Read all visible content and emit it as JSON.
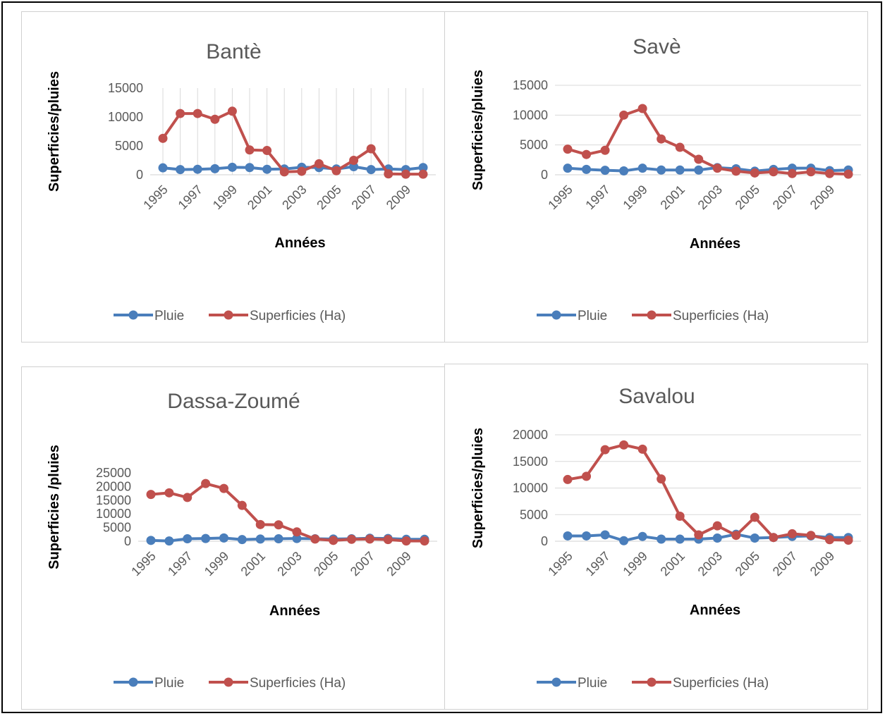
{
  "colors": {
    "pluie": "#4a7ebb",
    "superficies": "#c0504d",
    "grid": "#d9d9d9"
  },
  "chart_data": [
    {
      "type": "line",
      "title": "Bantè",
      "xlabel": "Années",
      "ylabel": "Superficies/pluies",
      "x": [
        1995,
        1996,
        1997,
        1998,
        1999,
        2000,
        2001,
        2002,
        2003,
        2004,
        2005,
        2006,
        2007,
        2008,
        2009,
        2010
      ],
      "x_tick_labels": [
        "1995",
        "1997",
        "1999",
        "2001",
        "2003",
        "2005",
        "2007",
        "2009"
      ],
      "ylim": [
        0,
        15000
      ],
      "yticks": [
        0,
        5000,
        10000,
        15000
      ],
      "y_tick_labels": [
        "0",
        "5000",
        "10000",
        "15000"
      ],
      "grid": "vertical",
      "legend": "bottom",
      "series": [
        {
          "name": "Pluie",
          "values": [
            1200,
            900,
            950,
            1050,
            1300,
            1250,
            950,
            1000,
            1300,
            1250,
            1000,
            1400,
            900,
            1000,
            900,
            1250
          ]
        },
        {
          "name": "Superficies (Ha)",
          "values": [
            6300,
            10600,
            10600,
            9600,
            11000,
            4300,
            4200,
            500,
            600,
            1900,
            700,
            2500,
            4500,
            150,
            100,
            100
          ]
        }
      ]
    },
    {
      "type": "line",
      "title": "Savè",
      "xlabel": "Années",
      "ylabel": "Superficies/pluies",
      "x": [
        1995,
        1996,
        1997,
        1998,
        1999,
        2000,
        2001,
        2002,
        2003,
        2004,
        2005,
        2006,
        2007,
        2008,
        2009,
        2010
      ],
      "x_tick_labels": [
        "1995",
        "1997",
        "1999",
        "2001",
        "2003",
        "2005",
        "2007",
        "2009"
      ],
      "ylim": [
        0,
        15000
      ],
      "yticks": [
        0,
        5000,
        10000,
        15000
      ],
      "y_tick_labels": [
        "0",
        "5000",
        "10000",
        "15000"
      ],
      "grid": "horizontal",
      "legend": "bottom",
      "series": [
        {
          "name": "Pluie",
          "values": [
            1100,
            900,
            750,
            650,
            1100,
            800,
            800,
            800,
            1200,
            1000,
            600,
            900,
            1100,
            1100,
            700,
            800
          ]
        },
        {
          "name": "Superficies (Ha)",
          "values": [
            4300,
            3400,
            4100,
            10000,
            11100,
            6000,
            4600,
            2600,
            1100,
            600,
            300,
            500,
            200,
            500,
            200,
            100
          ]
        }
      ]
    },
    {
      "type": "line",
      "title": "Dassa-Zoumé",
      "xlabel": "Années",
      "ylabel": "Superficies /pluies",
      "x": [
        1995,
        1996,
        1997,
        1998,
        1999,
        2000,
        2001,
        2002,
        2003,
        2004,
        2005,
        2006,
        2007,
        2008,
        2009,
        2010
      ],
      "x_tick_labels": [
        "1995",
        "1997",
        "1999",
        "2001",
        "2003",
        "2005",
        "2007",
        "2009"
      ],
      "ylim": [
        0,
        25000
      ],
      "yticks": [
        0,
        5000,
        10000,
        15000,
        20000,
        25000
      ],
      "y_tick_labels": [
        "0",
        "5000",
        "10000",
        "15000",
        "20000",
        "25000"
      ],
      "grid": "none",
      "legend": "bottom",
      "series": [
        {
          "name": "Pluie",
          "values": [
            300,
            100,
            900,
            1000,
            1200,
            600,
            800,
            900,
            1000,
            900,
            800,
            900,
            1100,
            1000,
            700,
            700
          ]
        },
        {
          "name": "Superficies (Ha)",
          "values": [
            17100,
            17700,
            16000,
            21100,
            19300,
            13100,
            6100,
            6000,
            3400,
            800,
            300,
            700,
            800,
            600,
            100,
            100
          ]
        }
      ]
    },
    {
      "type": "line",
      "title": "Savalou",
      "xlabel": "Années",
      "ylabel": "Superficies/pluies",
      "x": [
        1995,
        1996,
        1997,
        1998,
        1999,
        2000,
        2001,
        2002,
        2003,
        2004,
        2005,
        2006,
        2007,
        2008,
        2009,
        2010
      ],
      "x_tick_labels": [
        "1995",
        "1997",
        "1999",
        "2001",
        "2003",
        "2005",
        "2007",
        "2009"
      ],
      "ylim": [
        0,
        20000
      ],
      "yticks": [
        0,
        5000,
        10000,
        15000,
        20000
      ],
      "y_tick_labels": [
        "0",
        "5000",
        "10000",
        "15000",
        "20000"
      ],
      "grid": "horizontal",
      "legend": "bottom",
      "series": [
        {
          "name": "Pluie",
          "values": [
            1000,
            1000,
            1200,
            100,
            900,
            400,
            400,
            400,
            600,
            1300,
            600,
            700,
            900,
            1000,
            700,
            700
          ]
        },
        {
          "name": "Superficies (Ha)",
          "values": [
            11600,
            12200,
            17200,
            18100,
            17300,
            11700,
            4700,
            1200,
            2900,
            1100,
            4500,
            700,
            1400,
            1100,
            300,
            200
          ]
        }
      ]
    }
  ]
}
